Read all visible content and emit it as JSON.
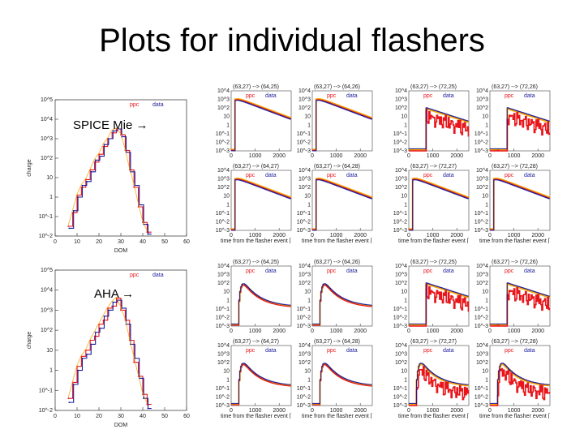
{
  "page": {
    "title": "Plots for individual flashers"
  },
  "labels": {
    "spice": "SPICE Mie →",
    "aha": "AHA →"
  },
  "colors": {
    "ppc": "#e8161b",
    "data": "#1c1c9c",
    "fit": "#f5a300"
  },
  "chart_data": [
    {
      "type": "line",
      "model": "SPICE Mie",
      "title": "",
      "xlabel": "DOM",
      "ylabel": "charge",
      "xlim": [
        0,
        60
      ],
      "ylog": true,
      "ylim_exp": [
        -2,
        5
      ],
      "x_ticks": [
        "0",
        "10",
        "20",
        "30",
        "40",
        "50",
        "60"
      ],
      "y_ticks": [
        "10^-2",
        "10^-1",
        "1",
        "10",
        "10^2",
        "10^3",
        "10^4",
        "10^5"
      ],
      "legend": [
        "ppc",
        "data"
      ],
      "x": [
        6,
        8,
        10,
        12,
        14,
        16,
        18,
        20,
        22,
        24,
        26,
        28,
        30,
        32,
        34,
        36,
        38,
        40,
        42
      ],
      "series": [
        {
          "name": "ppc",
          "values_log10": [
            -1.5,
            -0.8,
            0.1,
            0.5,
            0.9,
            1.4,
            1.8,
            2.2,
            2.6,
            3.0,
            3.3,
            3.5,
            3.2,
            2.4,
            1.4,
            0.5,
            -0.5,
            -1.3,
            -1.8
          ]
        },
        {
          "name": "data",
          "values_log10": [
            -1.6,
            -0.7,
            0.0,
            0.6,
            0.8,
            1.3,
            1.9,
            2.1,
            2.7,
            3.0,
            3.4,
            3.5,
            3.1,
            2.3,
            1.3,
            0.6,
            -0.4,
            -1.4,
            -1.9
          ]
        }
      ]
    },
    {
      "type": "line",
      "model": "AHA",
      "title": "",
      "xlabel": "DOM",
      "ylabel": "charge",
      "xlim": [
        0,
        60
      ],
      "ylog": true,
      "ylim_exp": [
        -2,
        5
      ],
      "x_ticks": [
        "0",
        "10",
        "20",
        "30",
        "40",
        "50",
        "60"
      ],
      "y_ticks": [
        "10^-2",
        "10^-1",
        "1",
        "10",
        "10^2",
        "10^3",
        "10^4",
        "10^5"
      ],
      "legend": [
        "ppc",
        "data"
      ],
      "x": [
        6,
        8,
        10,
        12,
        14,
        16,
        18,
        20,
        22,
        24,
        26,
        28,
        30,
        32,
        34,
        36,
        38,
        40,
        42
      ],
      "series": [
        {
          "name": "ppc",
          "values_log10": [
            -1.4,
            -0.6,
            0.2,
            0.7,
            1.0,
            1.5,
            1.7,
            2.3,
            2.5,
            3.1,
            3.2,
            3.6,
            3.0,
            2.5,
            1.5,
            0.4,
            -0.3,
            -1.2,
            -1.7
          ]
        },
        {
          "name": "data",
          "values_log10": [
            -1.6,
            -0.7,
            0.0,
            0.6,
            0.8,
            1.3,
            1.9,
            2.1,
            2.7,
            3.0,
            3.4,
            3.5,
            3.1,
            2.3,
            1.3,
            0.6,
            -0.4,
            -1.4,
            -1.9
          ]
        }
      ]
    }
  ],
  "flasher_panels": {
    "type": "line",
    "ylog": true,
    "xlim": [
      0,
      2500
    ],
    "x_ticks": [
      "0",
      "1000",
      "2000"
    ],
    "y_ticks": [
      "10^4",
      "10^3",
      "10^2",
      "10",
      "1",
      "10^-1",
      "10^-2",
      "10^-3"
    ],
    "xlabel": "time from the flasher event [ ns ]",
    "legend": [
      "ppc",
      "data"
    ],
    "groups": [
      {
        "model": "SPICE Mie",
        "shape": "decay",
        "panels": [
          {
            "title": "(63,27) --> (64,25)",
            "noise": false
          },
          {
            "title": "(63,27) --> (64,26)",
            "noise": false
          },
          {
            "title": "(63,27) --> (72,25)",
            "noise": true
          },
          {
            "title": "(63,27) --> (72,26)",
            "noise": true
          },
          {
            "title": "(63,27) --> (64,27)",
            "noise": false
          },
          {
            "title": "(63,27) --> (64,28)",
            "noise": false
          },
          {
            "title": "(63,27) --> (72,27)",
            "noise": false
          },
          {
            "title": "(63,27) --> (72,28)",
            "noise": false
          }
        ]
      },
      {
        "model": "AHA",
        "shape": "peak",
        "panels": [
          {
            "title": "(63,27) --> (64,25)",
            "noise": false
          },
          {
            "title": "(63,27) --> (64,26)",
            "noise": false
          },
          {
            "title": "(63,27) --> (72,25)",
            "noise": true
          },
          {
            "title": "(63,27) --> (72,26)",
            "noise": true
          },
          {
            "title": "(63,27) --> (64,27)",
            "noise": false
          },
          {
            "title": "(63,27) --> (64,28)",
            "noise": false
          },
          {
            "title": "(63,27) --> (72,27)",
            "noise": true
          },
          {
            "title": "(63,27) --> (72,28)",
            "noise": true
          }
        ]
      }
    ]
  }
}
